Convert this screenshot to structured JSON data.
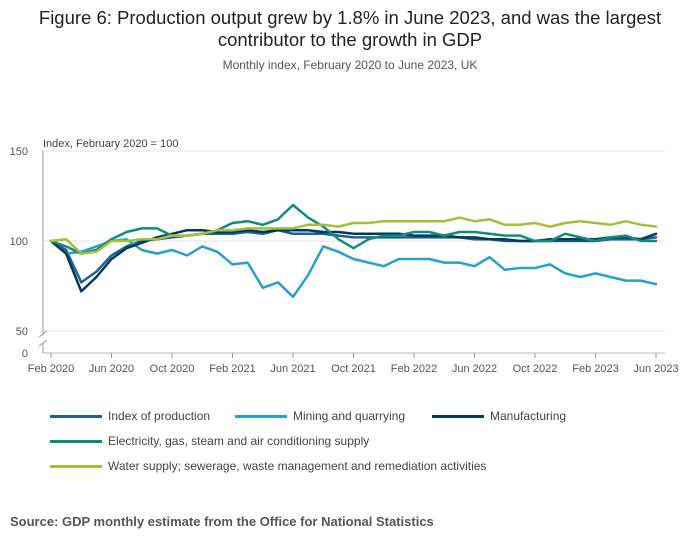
{
  "title": "Figure 6: Production output grew by 1.8% in June 2023, and was the largest contributor to the growth in GDP",
  "subtitle": "Monthly index, February 2020 to June 2023, UK",
  "source": "Source: GDP monthly estimate from the Office for National Statistics",
  "chart_data": {
    "type": "line",
    "ylabel": "Index, February 2020 = 100",
    "y_ticks": [
      0,
      50,
      100,
      150
    ],
    "y_axis_break": true,
    "ylim": [
      50,
      150
    ],
    "x_tick_labels": [
      "Feb 2020",
      "Jun 2020",
      "Oct 2020",
      "Feb 2021",
      "Jun 2021",
      "Oct 2021",
      "Feb 2022",
      "Jun 2022",
      "Oct 2022",
      "Feb 2023",
      "Jun 2023"
    ],
    "x": [
      "Feb 2020",
      "Mar 2020",
      "Apr 2020",
      "May 2020",
      "Jun 2020",
      "Jul 2020",
      "Aug 2020",
      "Sep 2020",
      "Oct 2020",
      "Nov 2020",
      "Dec 2020",
      "Jan 2021",
      "Feb 2021",
      "Mar 2021",
      "Apr 2021",
      "May 2021",
      "Jun 2021",
      "Jul 2021",
      "Aug 2021",
      "Sep 2021",
      "Oct 2021",
      "Nov 2021",
      "Dec 2021",
      "Jan 2022",
      "Feb 2022",
      "Mar 2022",
      "Apr 2022",
      "May 2022",
      "Jun 2022",
      "Jul 2022",
      "Aug 2022",
      "Sep 2022",
      "Oct 2022",
      "Nov 2022",
      "Dec 2022",
      "Jan 2023",
      "Feb 2023",
      "Mar 2023",
      "Apr 2023",
      "May 2023",
      "Jun 2023"
    ],
    "series": [
      {
        "name": "Index of production",
        "color": "#206095",
        "values": [
          100,
          95,
          77,
          83,
          92,
          97,
          100,
          101,
          102,
          103,
          104,
          104,
          104,
          105,
          104,
          106,
          104,
          104,
          104,
          103,
          102,
          102,
          102,
          102,
          102,
          102,
          102,
          102,
          101,
          101,
          100,
          100,
          100,
          100,
          100,
          100,
          100,
          101,
          101,
          101,
          102
        ]
      },
      {
        "name": "Mining and quarrying",
        "color": "#27A0CC",
        "values": [
          100,
          93,
          94,
          97,
          100,
          101,
          95,
          93,
          95,
          92,
          97,
          94,
          87,
          88,
          74,
          77,
          69,
          81,
          97,
          94,
          90,
          88,
          86,
          90,
          90,
          90,
          88,
          88,
          86,
          91,
          84,
          85,
          85,
          87,
          82,
          80,
          82,
          80,
          78,
          78,
          76
        ]
      },
      {
        "name": "Manufacturing",
        "color": "#003C57",
        "values": [
          100,
          93,
          72,
          80,
          90,
          96,
          99,
          102,
          104,
          106,
          106,
          105,
          105,
          106,
          105,
          106,
          106,
          106,
          105,
          105,
          104,
          104,
          104,
          104,
          103,
          103,
          103,
          102,
          102,
          101,
          101,
          100,
          100,
          101,
          101,
          101,
          101,
          102,
          102,
          101,
          104
        ]
      },
      {
        "name": "Electricity, gas, steam and air conditioning supply",
        "color": "#118C7B",
        "values": [
          100,
          97,
          93,
          95,
          101,
          105,
          107,
          107,
          103,
          103,
          104,
          106,
          110,
          111,
          109,
          112,
          120,
          113,
          108,
          101,
          96,
          101,
          103,
          103,
          105,
          105,
          103,
          105,
          105,
          104,
          103,
          103,
          100,
          100,
          104,
          102,
          100,
          102,
          103,
          100,
          100
        ]
      },
      {
        "name": "Water supply; sewerage, waste management and remediation activities",
        "color": "#A8BD3A",
        "values": [
          100,
          101,
          93,
          94,
          100,
          100,
          101,
          101,
          103,
          103,
          104,
          106,
          106,
          107,
          107,
          107,
          107,
          109,
          109,
          108,
          110,
          110,
          111,
          111,
          111,
          111,
          111,
          113,
          111,
          112,
          109,
          109,
          110,
          108,
          110,
          111,
          110,
          109,
          111,
          109,
          108
        ]
      }
    ]
  }
}
